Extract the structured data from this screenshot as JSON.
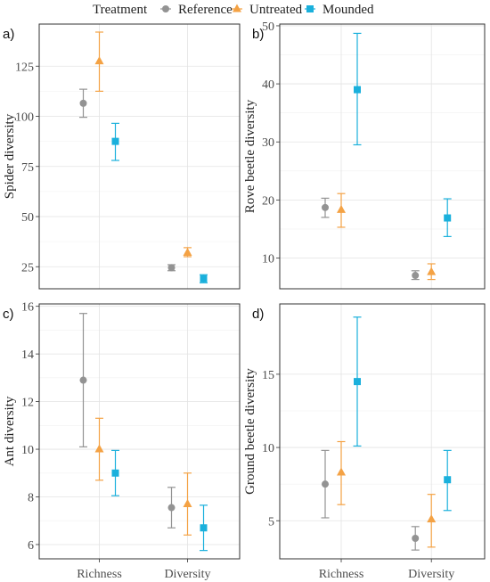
{
  "legend": {
    "title": "Treatment",
    "items": [
      {
        "label": "Reference",
        "color": "#939393",
        "shape": "circle"
      },
      {
        "label": "Untreated",
        "color": "#f4a244",
        "shape": "triangle"
      },
      {
        "label": "Mounded",
        "color": "#1ab0dc",
        "shape": "square"
      }
    ]
  },
  "chart_data": [
    {
      "type": "scatter",
      "panel_tag": "a)",
      "ylabel": "Spider diversity",
      "xlabel": "",
      "categories": [
        "Richness",
        "Diversity"
      ],
      "ylim": [
        14,
        146
      ],
      "yticks": [
        25,
        50,
        75,
        100,
        125
      ],
      "grid": true,
      "series": [
        {
          "name": "Reference",
          "values": [
            106.5,
            24.5
          ],
          "lower": [
            99.5,
            23
          ],
          "upper": [
            113.5,
            26
          ]
        },
        {
          "name": "Untreated",
          "values": [
            127.5,
            32
          ],
          "lower": [
            112.5,
            30
          ],
          "upper": [
            142,
            34.5
          ]
        },
        {
          "name": "Mounded",
          "values": [
            87.5,
            19
          ],
          "lower": [
            78,
            17
          ],
          "upper": [
            96.5,
            21
          ]
        }
      ]
    },
    {
      "type": "scatter",
      "panel_tag": "b)",
      "ylabel": "Rove beetle diversity",
      "xlabel": "",
      "categories": [
        "Richness",
        "Diversity"
      ],
      "ylim": [
        4.7,
        50.3
      ],
      "yticks": [
        10,
        20,
        30,
        40,
        50
      ],
      "grid": true,
      "series": [
        {
          "name": "Reference",
          "values": [
            18.7,
            7
          ],
          "lower": [
            17,
            6.3
          ],
          "upper": [
            20.3,
            7.8
          ]
        },
        {
          "name": "Untreated",
          "values": [
            18.3,
            7.6
          ],
          "lower": [
            15.3,
            6.3
          ],
          "upper": [
            21.1,
            9
          ]
        },
        {
          "name": "Mounded",
          "values": [
            39,
            16.9
          ],
          "lower": [
            29.5,
            13.7
          ],
          "upper": [
            48.7,
            20.2
          ]
        }
      ]
    },
    {
      "type": "scatter",
      "panel_tag": "c)",
      "ylabel": "Ant diversity",
      "xlabel": "",
      "categories": [
        "Richness",
        "Diversity"
      ],
      "ylim": [
        5.4,
        16.1
      ],
      "yticks": [
        6,
        8,
        10,
        12,
        14,
        16
      ],
      "grid": true,
      "series": [
        {
          "name": "Reference",
          "values": [
            12.9,
            7.55
          ],
          "lower": [
            10.1,
            6.7
          ],
          "upper": [
            15.7,
            8.4
          ]
        },
        {
          "name": "Untreated",
          "values": [
            10,
            7.7
          ],
          "lower": [
            8.7,
            6.4
          ],
          "upper": [
            11.3,
            9
          ]
        },
        {
          "name": "Mounded",
          "values": [
            9,
            6.7
          ],
          "lower": [
            8.05,
            5.75
          ],
          "upper": [
            9.95,
            7.65
          ]
        }
      ]
    },
    {
      "type": "scatter",
      "panel_tag": "d)",
      "ylabel": "Ground beetle diversity",
      "xlabel": "",
      "categories": [
        "Richness",
        "Diversity"
      ],
      "ylim": [
        2.4,
        19.8
      ],
      "yticks": [
        5,
        10,
        15
      ],
      "grid": true,
      "series": [
        {
          "name": "Reference",
          "values": [
            7.5,
            3.8
          ],
          "lower": [
            5.2,
            3
          ],
          "upper": [
            9.8,
            4.6
          ]
        },
        {
          "name": "Untreated",
          "values": [
            8.3,
            5.1
          ],
          "lower": [
            6.1,
            3.2
          ],
          "upper": [
            10.4,
            6.8
          ]
        },
        {
          "name": "Mounded",
          "values": [
            14.5,
            7.8
          ],
          "lower": [
            10.1,
            5.7
          ],
          "upper": [
            18.9,
            9.8
          ]
        }
      ]
    }
  ]
}
